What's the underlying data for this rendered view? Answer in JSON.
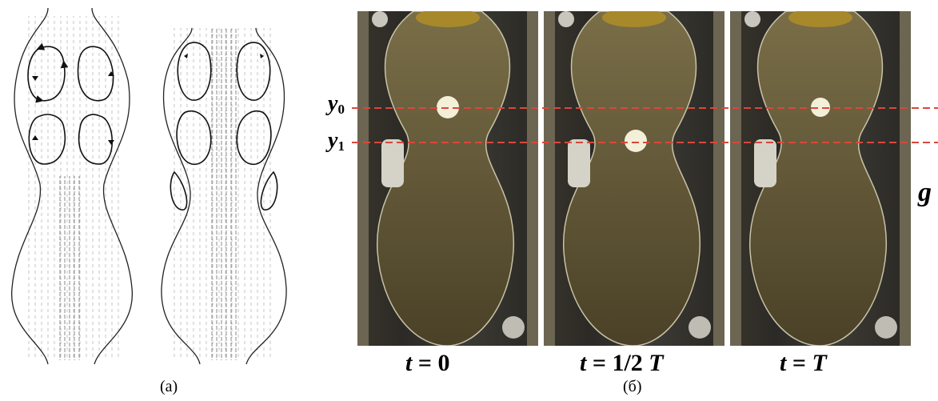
{
  "figure": {
    "panel_a": {
      "caption": "(а)"
    },
    "panel_b": {
      "caption": "(б)",
      "level_labels": [
        {
          "symbol": "y",
          "subscript": "0"
        },
        {
          "symbol": "y",
          "subscript": "1"
        }
      ],
      "gravity_symbol": "g",
      "frames": [
        {
          "t_label": "t",
          "value": "= 0"
        },
        {
          "t_label": "t",
          "value": "= 1/2",
          "period": "T"
        },
        {
          "t_label": "t",
          "value": "=",
          "period": "T"
        }
      ],
      "colors": {
        "dashed_line": "#d9483b",
        "fluid_bottom": "#4a4127",
        "fluid_top": "#7a6e48",
        "particle": "#f3efd8"
      }
    }
  }
}
